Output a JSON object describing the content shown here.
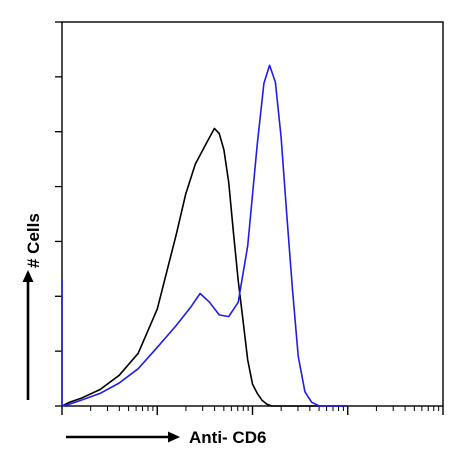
{
  "chart_data": {
    "type": "line",
    "xlabel": "Anti- CD6",
    "ylabel": "# Cells",
    "x_scale": "log",
    "x_decades": 4,
    "xlim": [
      0,
      4
    ],
    "ylim": [
      0,
      100
    ],
    "grid": false,
    "colors": {
      "control": "#000000",
      "sample": "#1e1ee6",
      "axes": "#000000"
    },
    "series": [
      {
        "x": [
          0.0,
          0.08,
          0.2,
          0.4,
          0.6,
          0.8,
          1.0,
          1.1,
          1.2,
          1.3,
          1.4,
          1.5,
          1.6,
          1.65,
          1.7,
          1.75,
          1.8,
          1.85,
          1.9,
          1.95,
          2.0,
          2.05,
          2.1,
          2.15,
          2.2,
          2.3,
          2.4,
          2.5,
          2.6,
          2.8,
          3.0
        ],
        "y": [
          0.0,
          1.0,
          2.0,
          4.0,
          8.0,
          14.0,
          25.0,
          35.0,
          45.0,
          55.0,
          63.0,
          68.0,
          72.0,
          71.0,
          67.0,
          58.0,
          45.0,
          33.0,
          22.0,
          12.0,
          6.0,
          3.0,
          1.5,
          0.5,
          0.0,
          0.0,
          0.0,
          0.0,
          0.0,
          0.0,
          0.0
        ]
      },
      {
        "x": [
          0.0,
          0.08,
          0.2,
          0.4,
          0.6,
          0.8,
          1.0,
          1.2,
          1.35,
          1.45,
          1.55,
          1.65,
          1.75,
          1.85,
          1.95,
          2.05,
          2.12,
          2.18,
          2.24,
          2.3,
          2.36,
          2.42,
          2.48,
          2.55,
          2.62,
          2.7,
          2.8,
          3.0
        ],
        "y": [
          0.0,
          0.5,
          1.5,
          3.0,
          6.0,
          10.0,
          15.0,
          21.0,
          26.0,
          29.0,
          27.0,
          24.0,
          23.0,
          27.0,
          42.0,
          68.0,
          84.0,
          89.0,
          84.0,
          70.0,
          50.0,
          30.0,
          13.0,
          4.0,
          1.0,
          0.0,
          0.0,
          0.0
        ]
      }
    ]
  }
}
